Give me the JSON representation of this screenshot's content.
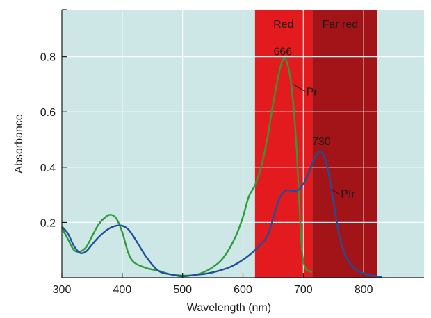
{
  "chart_data": {
    "type": "line",
    "xlabel": "Wavelength (nm)",
    "ylabel": "Absorbance",
    "xlim": [
      300,
      900
    ],
    "ylim": [
      0,
      0.97
    ],
    "x_ticks": [
      300,
      400,
      500,
      600,
      700,
      800
    ],
    "y_ticks": [
      0.2,
      0.4,
      0.6,
      0.8
    ],
    "x_tick_labels": [
      "300",
      "400",
      "500",
      "600",
      "700",
      "800"
    ],
    "y_tick_labels": [
      "0.2",
      "0.4",
      "0.6",
      "0.8"
    ],
    "grid": true,
    "bands": [
      {
        "label": "Red",
        "from": 620,
        "to": 715,
        "color": "#e31b1e"
      },
      {
        "label": "Far red",
        "from": 715,
        "to": 822,
        "color": "#a31419"
      }
    ],
    "series": [
      {
        "name": "Pr",
        "color": "#2e9a3c",
        "points": [
          [
            300,
            0.18
          ],
          [
            310,
            0.14
          ],
          [
            320,
            0.1
          ],
          [
            330,
            0.095
          ],
          [
            340,
            0.11
          ],
          [
            350,
            0.15
          ],
          [
            360,
            0.19
          ],
          [
            370,
            0.215
          ],
          [
            380,
            0.228
          ],
          [
            390,
            0.215
          ],
          [
            400,
            0.165
          ],
          [
            410,
            0.09
          ],
          [
            420,
            0.055
          ],
          [
            440,
            0.035
          ],
          [
            460,
            0.025
          ],
          [
            480,
            0.012
          ],
          [
            500,
            0.008
          ],
          [
            520,
            0.01
          ],
          [
            540,
            0.025
          ],
          [
            560,
            0.055
          ],
          [
            570,
            0.08
          ],
          [
            580,
            0.115
          ],
          [
            590,
            0.16
          ],
          [
            600,
            0.22
          ],
          [
            610,
            0.295
          ],
          [
            620,
            0.335
          ],
          [
            630,
            0.4
          ],
          [
            640,
            0.5
          ],
          [
            650,
            0.63
          ],
          [
            660,
            0.745
          ],
          [
            666,
            0.788
          ],
          [
            672,
            0.785
          ],
          [
            680,
            0.7
          ],
          [
            688,
            0.5
          ],
          [
            693,
            0.28
          ],
          [
            697,
            0.12
          ],
          [
            700,
            0.06
          ],
          [
            705,
            0.03
          ],
          [
            715,
            0.02
          ]
        ]
      },
      {
        "name": "Pfr",
        "color": "#1d4f9c",
        "points": [
          [
            300,
            0.185
          ],
          [
            310,
            0.16
          ],
          [
            320,
            0.115
          ],
          [
            330,
            0.09
          ],
          [
            340,
            0.095
          ],
          [
            350,
            0.12
          ],
          [
            360,
            0.145
          ],
          [
            370,
            0.165
          ],
          [
            380,
            0.18
          ],
          [
            390,
            0.188
          ],
          [
            400,
            0.188
          ],
          [
            410,
            0.175
          ],
          [
            420,
            0.145
          ],
          [
            440,
            0.075
          ],
          [
            460,
            0.025
          ],
          [
            480,
            0.012
          ],
          [
            500,
            0.005
          ],
          [
            520,
            0.01
          ],
          [
            540,
            0.015
          ],
          [
            560,
            0.025
          ],
          [
            580,
            0.04
          ],
          [
            600,
            0.065
          ],
          [
            620,
            0.1
          ],
          [
            640,
            0.15
          ],
          [
            650,
            0.215
          ],
          [
            660,
            0.285
          ],
          [
            670,
            0.315
          ],
          [
            680,
            0.315
          ],
          [
            690,
            0.315
          ],
          [
            700,
            0.34
          ],
          [
            710,
            0.385
          ],
          [
            720,
            0.44
          ],
          [
            730,
            0.455
          ],
          [
            740,
            0.4
          ],
          [
            750,
            0.275
          ],
          [
            760,
            0.15
          ],
          [
            770,
            0.08
          ],
          [
            780,
            0.045
          ],
          [
            790,
            0.025
          ],
          [
            800,
            0.015
          ],
          [
            810,
            0.01
          ],
          [
            820,
            0.005
          ],
          [
            830,
            0.002
          ]
        ]
      }
    ],
    "annotations": [
      {
        "text": "666",
        "x": 666,
        "y": 0.788
      },
      {
        "text": "730",
        "x": 730,
        "y": 0.455
      },
      {
        "text": "Pr",
        "series": "Pr"
      },
      {
        "text": "Pfr",
        "series": "Pfr"
      }
    ]
  },
  "colors": {
    "plot_background": "#cce7e5",
    "grid": "#ffffff",
    "axis": "#1a1a1a"
  }
}
